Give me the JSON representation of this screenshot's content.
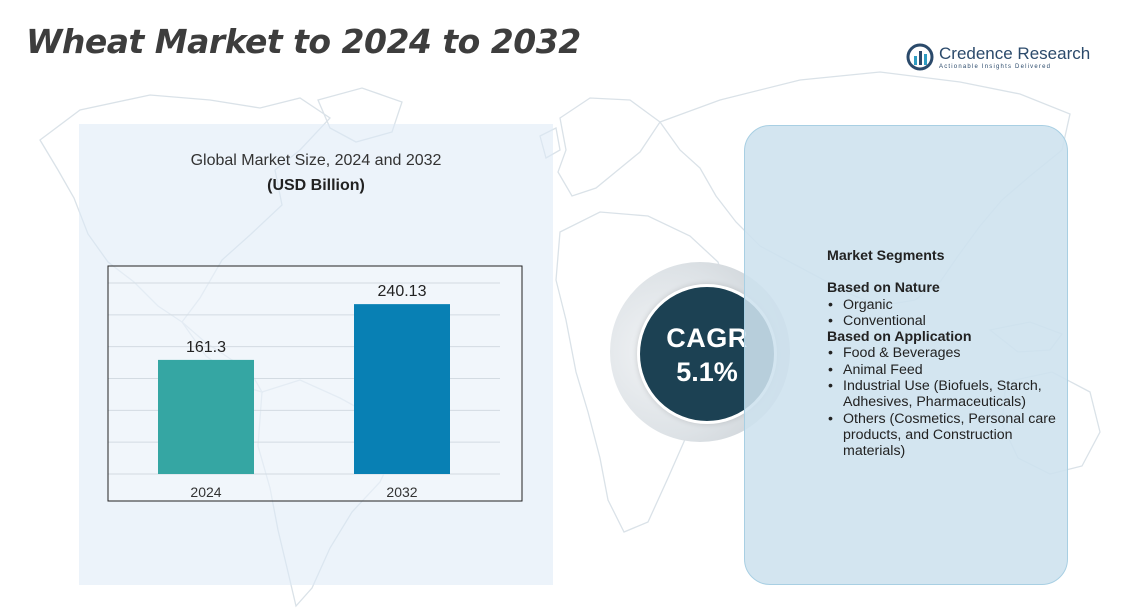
{
  "title": "Wheat Market to 2024 to 2032",
  "logo": {
    "name": "Credence Research",
    "tagline": "Actionable Insights Delivered",
    "icon": "credence-logo-icon"
  },
  "chart_data": {
    "type": "bar",
    "title": "Global Market Size,  2024 and 2032",
    "unit": "(USD Billion)",
    "categories": [
      "2024",
      "2032"
    ],
    "values": [
      161.3,
      240.13
    ],
    "value_labels": [
      "161.3",
      "240.13"
    ],
    "colors": [
      "#35a6a3",
      "#0880b4"
    ],
    "ylim": [
      0,
      270
    ],
    "grid": true,
    "xlabel": "",
    "ylabel": ""
  },
  "cagr": {
    "label": "CAGR",
    "value": "5.1%"
  },
  "segments": {
    "heading": "Market Segments",
    "groups": [
      {
        "title": "Based on Nature",
        "items": [
          "Organic",
          "Conventional"
        ]
      },
      {
        "title": "Based on Application",
        "items": [
          "Food & Beverages",
          "Animal Feed",
          "Industrial Use (Biofuels, Starch, Adhesives, Pharmaceuticals)",
          "Others (Cosmetics, Personal care products, and Construction materials)"
        ]
      }
    ]
  },
  "colors": {
    "title": "#3d3d3d",
    "panel": "#dceaf6",
    "cagr_circle": "#1c4153",
    "segments_panel": "#cde1ee"
  }
}
